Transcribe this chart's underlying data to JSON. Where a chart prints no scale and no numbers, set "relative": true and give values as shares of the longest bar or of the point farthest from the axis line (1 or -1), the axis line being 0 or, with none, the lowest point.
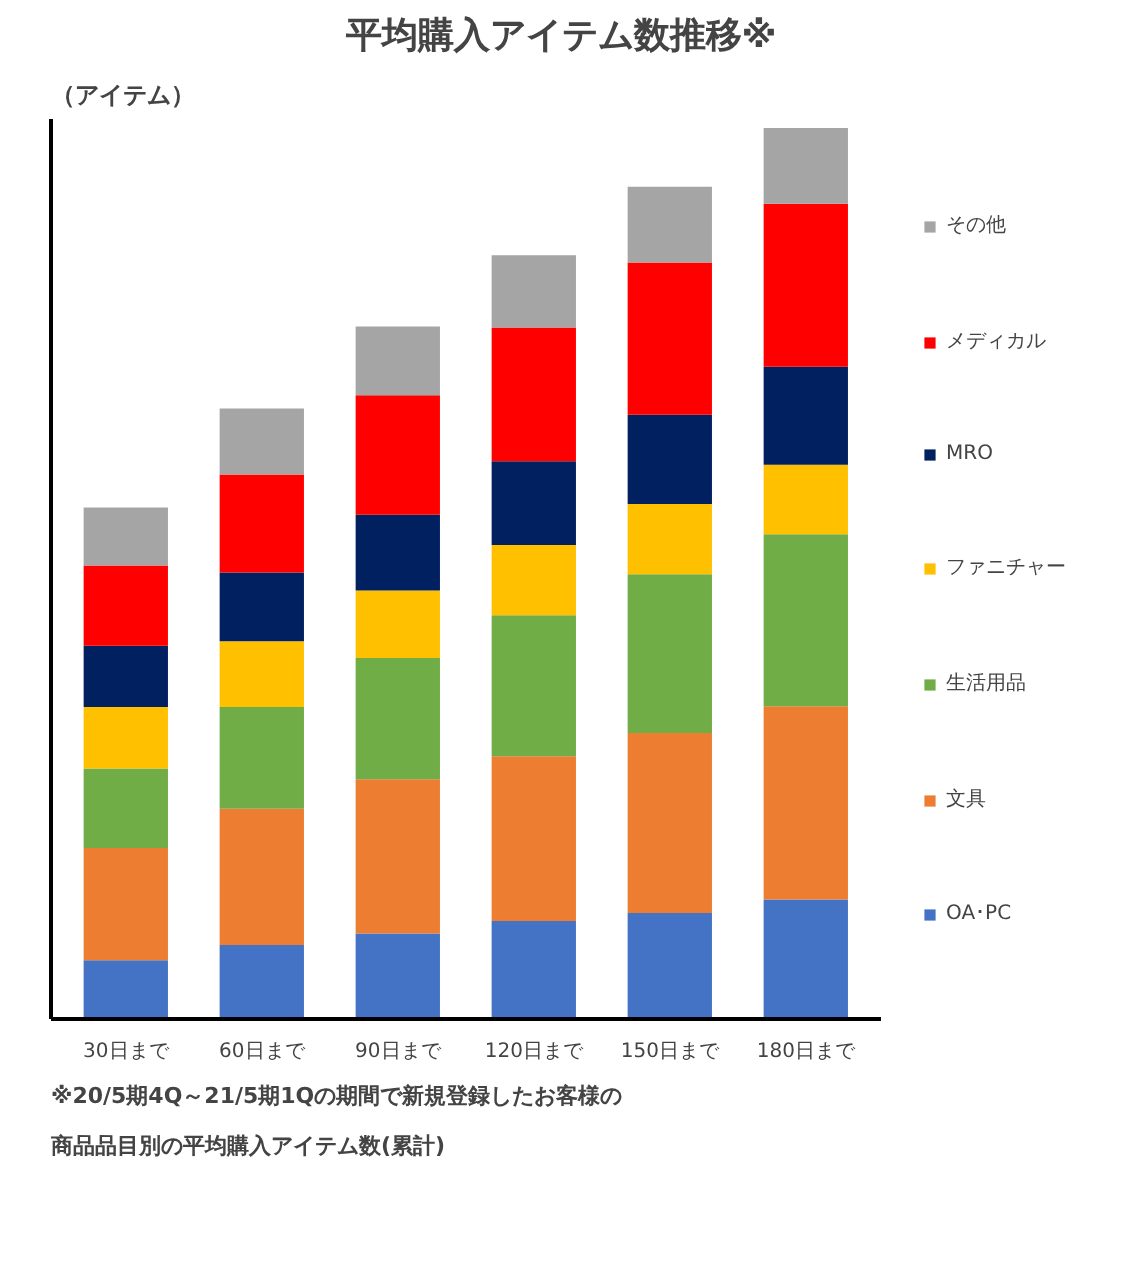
{
  "chart_data": {
    "type": "bar",
    "title": "平均購入アイテム数推移※",
    "ylabel": "（アイテム）",
    "stacked": true,
    "relative": true,
    "legend": "right",
    "grid": false,
    "categories": [
      "30日まで",
      "60日まで",
      "90日まで",
      "120日まで",
      "150日まで",
      "180日まで"
    ],
    "series": [
      {
        "name": "OA･PC",
        "color": "#4472c4",
        "values": [
          0.066,
          0.083,
          0.096,
          0.11,
          0.119,
          0.134
        ]
      },
      {
        "name": "文具",
        "color": "#ed7d31",
        "values": [
          0.126,
          0.153,
          0.173,
          0.185,
          0.202,
          0.217
        ]
      },
      {
        "name": "生活用品",
        "color": "#70ad47",
        "values": [
          0.089,
          0.114,
          0.136,
          0.158,
          0.178,
          0.193
        ]
      },
      {
        "name": "ファニチャー",
        "color": "#ffc000",
        "values": [
          0.069,
          0.074,
          0.076,
          0.079,
          0.079,
          0.078
        ]
      },
      {
        "name": "MRO",
        "color": "#002060",
        "values": [
          0.069,
          0.077,
          0.085,
          0.094,
          0.1,
          0.11
        ]
      },
      {
        "name": "メディカル",
        "color": "#ff0000",
        "values": [
          0.09,
          0.11,
          0.134,
          0.15,
          0.171,
          0.183
        ]
      },
      {
        "name": "その他",
        "color": "#a5a5a5",
        "values": [
          0.065,
          0.074,
          0.077,
          0.081,
          0.085,
          0.085
        ]
      }
    ],
    "annotations": [
      "※20/5期4Q～21/5期1Qの期間で新規登録したお客様の",
      "商品品目別の平均購入アイテム数(累計)"
    ]
  }
}
